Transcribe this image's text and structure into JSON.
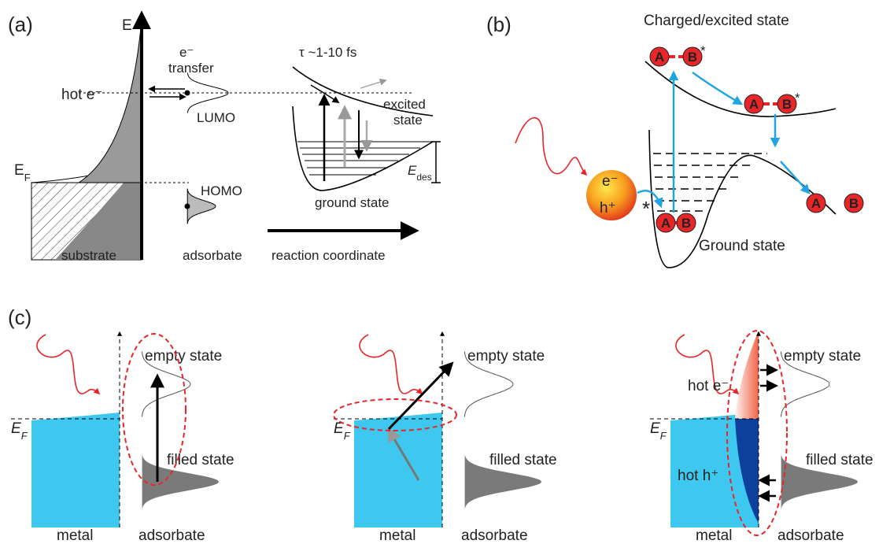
{
  "panel_a": {
    "label": "(a)",
    "energy_axis": "E",
    "transfer": {
      "line1": "e⁻",
      "line2": "transfer"
    },
    "hot_electron": "hot e⁻",
    "lumo": "LUMO",
    "homo": "HOMO",
    "fermi": {
      "symbol": "E",
      "subscript": "F"
    },
    "lifetime": "τ ~1-10 fs",
    "excited_state": {
      "line1": "excited",
      "line2": "state"
    },
    "desorption_energy": {
      "symbol": "E",
      "subscript": "des"
    },
    "ground_state": "ground state",
    "substrate": "substrate",
    "adsorbate": "adsorbate",
    "reaction_coordinate": "reaction coordinate"
  },
  "panel_b": {
    "label": "(b)",
    "title": "Charged/excited state",
    "molecules": [
      {
        "a": "A",
        "b": "B",
        "star": "*"
      },
      {
        "a": "A",
        "b": "B",
        "star": "*"
      },
      {
        "a": "A",
        "b": "B"
      },
      {
        "a": "A",
        "b": "B"
      }
    ],
    "electron": "e⁻",
    "hole": "h⁺",
    "excitation_star": "*",
    "ground_state": "Ground state"
  },
  "panel_c": {
    "label": "(c)",
    "subpanels": [
      {
        "empty_state": "empty state",
        "fermi": {
          "symbol": "E",
          "subscript": "F"
        },
        "filled_state": "filled state",
        "metal": "metal",
        "adsorbate": "adsorbate"
      },
      {
        "empty_state": "empty state",
        "fermi": {
          "symbol": "E",
          "subscript": "F"
        },
        "filled_state": "filled state",
        "metal": "metal",
        "adsorbate": "adsorbate"
      },
      {
        "empty_state": "empty state",
        "fermi": {
          "symbol": "E",
          "subscript": "F"
        },
        "filled_state": "filled state",
        "metal": "metal",
        "adsorbate": "adsorbate",
        "hot_electron": "hot e⁻",
        "hot_hole": "hot h⁺"
      }
    ]
  }
}
